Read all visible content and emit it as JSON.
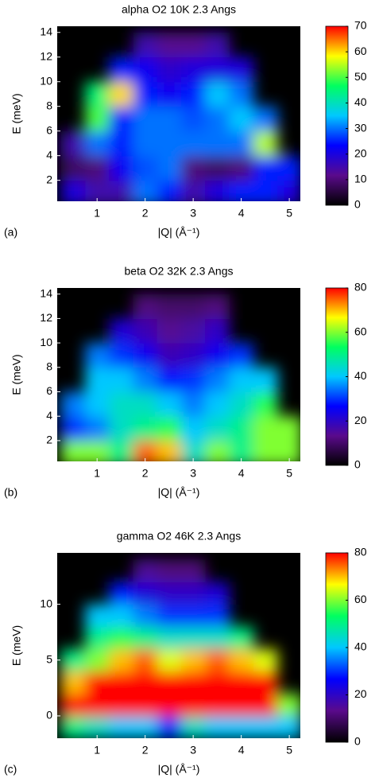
{
  "chart_data": [
    {
      "type": "heatmap",
      "title": "alpha O2 10K 2.3 Angs",
      "panel_label": "(a)",
      "x_label": "|Q| (Å⁻¹)",
      "y_label": "E (meV)",
      "xlim": [
        0.17,
        5.23
      ],
      "ylim": [
        0.3,
        14.5
      ],
      "xticks": [
        1,
        2,
        3,
        4,
        5
      ],
      "yticks": [
        2,
        4,
        6,
        8,
        10,
        12,
        14
      ],
      "clim": [
        0,
        70
      ],
      "cticks": [
        0,
        10,
        20,
        30,
        40,
        50,
        60,
        70
      ],
      "colormap": [
        "#000000",
        "#5a0a8c",
        "#0000ff",
        "#00c8ff",
        "#00ff60",
        "#ffff00",
        "#ff0000"
      ],
      "x": [
        0.5,
        1,
        1.5,
        2,
        2.5,
        3,
        3.5,
        4,
        4.5,
        5
      ],
      "y": [
        1,
        3,
        5,
        7,
        9,
        11,
        13
      ],
      "z": [
        [
          20,
          15,
          15,
          30,
          25,
          15,
          20,
          25,
          25,
          20
        ],
        [
          8,
          10,
          22,
          28,
          30,
          10,
          8,
          10,
          25,
          25
        ],
        [
          15,
          30,
          25,
          30,
          30,
          30,
          30,
          30,
          55,
          null
        ],
        [
          null,
          50,
          25,
          30,
          30,
          28,
          30,
          35,
          30,
          null
        ],
        [
          null,
          45,
          60,
          25,
          22,
          25,
          35,
          30,
          null,
          null
        ],
        [
          null,
          null,
          25,
          22,
          18,
          20,
          20,
          20,
          null,
          null
        ],
        [
          null,
          null,
          null,
          15,
          12,
          12,
          15,
          null,
          null,
          null
        ]
      ]
    },
    {
      "type": "heatmap",
      "title": "beta O2 32K 2.3 Angs",
      "panel_label": "(b)",
      "x_label": "|Q| (Å⁻¹)",
      "y_label": "E (meV)",
      "xlim": [
        0.17,
        5.23
      ],
      "ylim": [
        0.3,
        14.5
      ],
      "xticks": [
        1,
        2,
        3,
        4,
        5
      ],
      "yticks": [
        2,
        4,
        6,
        8,
        10,
        12,
        14
      ],
      "clim": [
        0,
        80
      ],
      "cticks": [
        0,
        20,
        40,
        60,
        80
      ],
      "colormap": [
        "#000000",
        "#5a0a8c",
        "#0000ff",
        "#00c8ff",
        "#00ff60",
        "#ffff00",
        "#ff0000"
      ],
      "x": [
        0.5,
        1,
        1.5,
        2,
        2.5,
        3,
        3.5,
        4,
        4.5,
        5
      ],
      "y": [
        1,
        3,
        5,
        7,
        9,
        11,
        13
      ],
      "z": [
        [
          60,
          60,
          50,
          75,
          70,
          45,
          60,
          50,
          60,
          60
        ],
        [
          30,
          35,
          45,
          50,
          55,
          40,
          45,
          50,
          60,
          60
        ],
        [
          35,
          40,
          45,
          45,
          40,
          35,
          40,
          45,
          55,
          null
        ],
        [
          null,
          40,
          40,
          35,
          28,
          30,
          35,
          40,
          40,
          null
        ],
        [
          null,
          35,
          30,
          25,
          18,
          20,
          25,
          30,
          null,
          null
        ],
        [
          null,
          null,
          22,
          18,
          14,
          16,
          20,
          null,
          null,
          null
        ],
        [
          null,
          null,
          null,
          12,
          10,
          10,
          12,
          null,
          null,
          null
        ]
      ]
    },
    {
      "type": "heatmap",
      "title": "gamma O2 46K 2.3 Angs",
      "panel_label": "(c)",
      "x_label": "|Q| (Å⁻¹)",
      "y_label": "E (meV)",
      "xlim": [
        0.17,
        5.23
      ],
      "ylim": [
        -2,
        14.6
      ],
      "xticks": [
        1,
        2,
        3,
        4,
        5
      ],
      "yticks": [
        0,
        5,
        10
      ],
      "clim": [
        0,
        80
      ],
      "cticks": [
        0,
        20,
        40,
        60,
        80
      ],
      "colormap": [
        "#000000",
        "#5a0a8c",
        "#0000ff",
        "#00c8ff",
        "#00ff60",
        "#ffff00",
        "#ff0000"
      ],
      "x": [
        0.5,
        1,
        1.5,
        2,
        2.5,
        3,
        3.5,
        4,
        4.5,
        5
      ],
      "y": [
        -1,
        1,
        3,
        5,
        7,
        9,
        11,
        13
      ],
      "z": [
        [
          50,
          45,
          40,
          40,
          30,
          45,
          40,
          40,
          40,
          40
        ],
        [
          80,
          80,
          80,
          80,
          80,
          80,
          80,
          80,
          80,
          60
        ],
        [
          70,
          80,
          80,
          80,
          80,
          80,
          80,
          80,
          80,
          null
        ],
        [
          50,
          60,
          70,
          75,
          65,
          70,
          75,
          70,
          65,
          null
        ],
        [
          null,
          50,
          55,
          50,
          45,
          45,
          45,
          50,
          null,
          null
        ],
        [
          null,
          40,
          40,
          35,
          30,
          30,
          30,
          null,
          null,
          null
        ],
        [
          null,
          null,
          28,
          22,
          20,
          20,
          22,
          null,
          null,
          null
        ],
        [
          null,
          null,
          null,
          15,
          12,
          12,
          null,
          null,
          null,
          null
        ]
      ]
    }
  ]
}
